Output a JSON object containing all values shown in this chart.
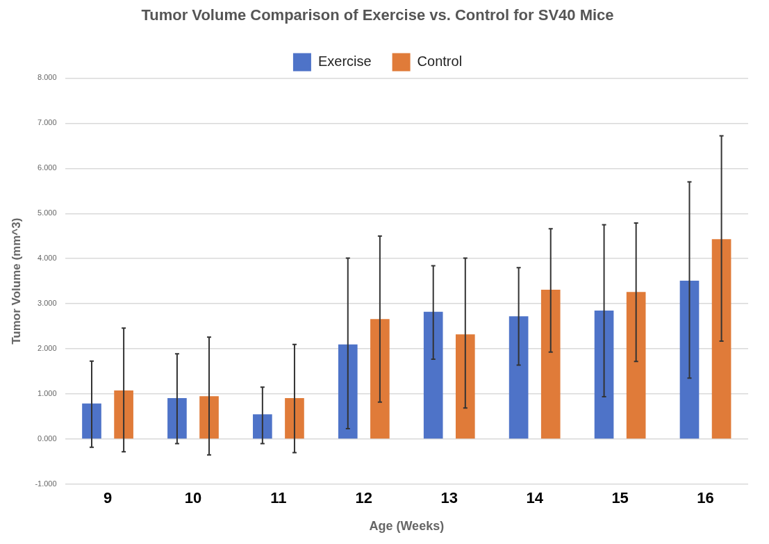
{
  "chart_data": {
    "type": "bar",
    "title": "Tumor Volume Comparison of Exercise vs. Control for SV40 Mice",
    "xlabel": "Age (Weeks)",
    "ylabel": "Tumor Volume (mm^3)",
    "categories": [
      "9",
      "10",
      "11",
      "12",
      "13",
      "14",
      "15",
      "16"
    ],
    "series": [
      {
        "name": "Exercise",
        "color": "#4e73c8",
        "values": [
          0.79,
          0.91,
          0.55,
          2.1,
          2.82,
          2.72,
          2.85,
          3.51
        ],
        "errors": [
          [
            -0.18,
            1.73
          ],
          [
            -0.1,
            1.89
          ],
          [
            -0.1,
            1.15
          ],
          [
            0.23,
            4.01
          ],
          [
            1.77,
            3.84
          ],
          [
            1.64,
            3.8
          ],
          [
            0.94,
            4.75
          ],
          [
            1.35,
            5.7
          ]
        ]
      },
      {
        "name": "Control",
        "color": "#e07b39",
        "values": [
          1.08,
          0.95,
          0.91,
          2.66,
          2.32,
          3.31,
          3.26,
          4.43
        ],
        "errors": [
          [
            -0.28,
            2.46
          ],
          [
            -0.35,
            2.26
          ],
          [
            -0.3,
            2.1
          ],
          [
            0.82,
            4.5
          ],
          [
            0.69,
            4.01
          ],
          [
            1.93,
            4.66
          ],
          [
            1.72,
            4.79
          ],
          [
            2.17,
            6.72
          ]
        ]
      }
    ],
    "ylim": [
      -1,
      8
    ],
    "yticks": [
      {
        "value": -1,
        "label": "-1.000"
      },
      {
        "value": 0,
        "label": "0.000"
      },
      {
        "value": 1,
        "label": "1.000"
      },
      {
        "value": 2,
        "label": "2.000"
      },
      {
        "value": 3,
        "label": "3.000"
      },
      {
        "value": 4,
        "label": "4.000"
      },
      {
        "value": 5,
        "label": "5.000"
      },
      {
        "value": 6,
        "label": "6.000"
      },
      {
        "value": 7,
        "label": "7.000"
      },
      {
        "value": 8,
        "label": "8.000"
      }
    ],
    "grid": "y",
    "legend": "top"
  }
}
